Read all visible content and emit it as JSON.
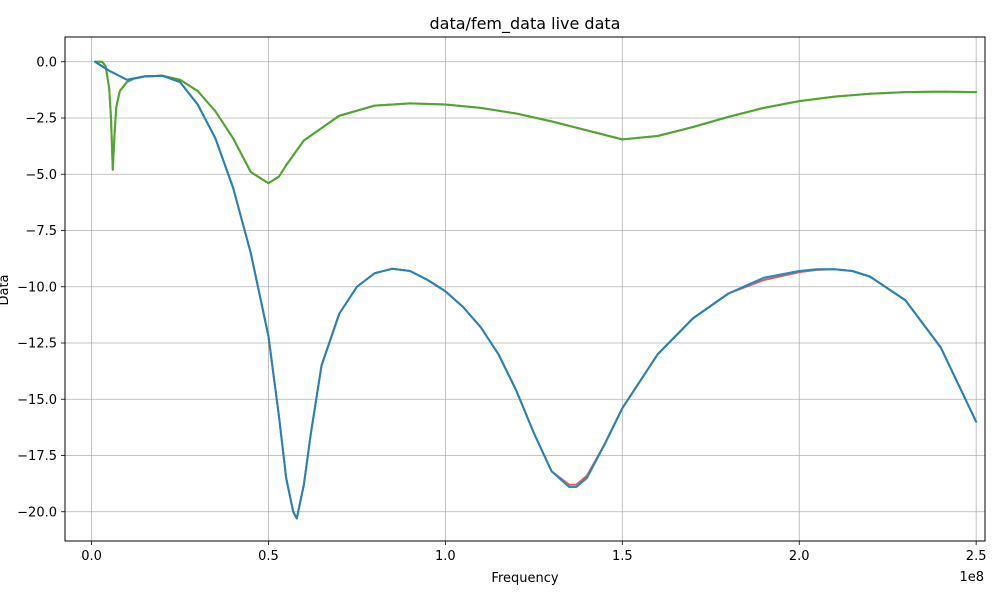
{
  "chart_data": {
    "type": "line",
    "title": "data/fem_data live data",
    "xlabel": "Frequency",
    "ylabel": "Data",
    "x_offset_label": "1e8",
    "xlim": [
      -0.075,
      2.525
    ],
    "ylim": [
      -21.3,
      1.1
    ],
    "x_ticks": [
      0.0,
      0.5,
      1.0,
      1.5,
      2.0,
      2.5
    ],
    "x_tick_labels": [
      "0.0",
      "0.5",
      "1.0",
      "1.5",
      "2.0",
      "2.5"
    ],
    "y_ticks": [
      0.0,
      -2.5,
      -5.0,
      -7.5,
      -10.0,
      -12.5,
      -15.0,
      -17.5,
      -20.0
    ],
    "y_tick_labels": [
      "0.0",
      "−2.5",
      "−5.0",
      "−7.5",
      "−10.0",
      "−12.5",
      "−15.0",
      "−17.5",
      "−20.0"
    ],
    "grid": true,
    "series": [
      {
        "color": "#7f7f7f",
        "x": [
          0.01,
          0.03,
          0.04,
          0.05,
          0.055,
          0.06,
          0.065,
          0.07,
          0.08,
          0.1,
          0.12,
          0.15,
          0.2,
          0.25,
          0.3,
          0.35,
          0.4,
          0.45,
          0.5,
          0.53,
          0.55,
          0.6,
          0.7,
          0.8,
          0.9,
          1.0,
          1.1,
          1.2,
          1.3,
          1.4,
          1.5,
          1.6,
          1.7,
          1.8,
          1.9,
          2.0,
          2.1,
          2.2,
          2.3,
          2.4,
          2.5
        ],
        "y": [
          0.0,
          0.0,
          -0.2,
          -1.2,
          -2.5,
          -4.8,
          -3.2,
          -2.0,
          -1.3,
          -0.9,
          -0.75,
          -0.65,
          -0.62,
          -0.8,
          -1.3,
          -2.2,
          -3.4,
          -4.9,
          -5.4,
          -5.1,
          -4.6,
          -3.5,
          -2.4,
          -1.95,
          -1.85,
          -1.9,
          -2.05,
          -2.3,
          -2.65,
          -3.05,
          -3.45,
          -3.3,
          -2.9,
          -2.45,
          -2.05,
          -1.75,
          -1.55,
          -1.42,
          -1.35,
          -1.33,
          -1.35
        ]
      },
      {
        "color": "#bcbd22",
        "x": [
          0.01,
          0.03,
          0.04,
          0.05,
          0.055,
          0.06,
          0.065,
          0.07,
          0.08,
          0.1,
          0.12,
          0.15,
          0.2,
          0.25,
          0.3,
          0.35,
          0.4,
          0.45,
          0.5,
          0.53,
          0.55,
          0.6,
          0.7,
          0.8,
          0.9,
          1.0,
          1.1,
          1.2,
          1.3,
          1.4,
          1.5,
          1.6,
          1.7,
          1.8,
          1.9,
          2.0,
          2.1,
          2.2,
          2.3,
          2.4,
          2.5
        ],
        "y": [
          0.0,
          0.0,
          -0.2,
          -1.2,
          -2.5,
          -4.8,
          -3.2,
          -2.0,
          -1.3,
          -0.9,
          -0.75,
          -0.65,
          -0.62,
          -0.8,
          -1.3,
          -2.2,
          -3.4,
          -4.9,
          -5.4,
          -5.1,
          -4.6,
          -3.5,
          -2.4,
          -1.95,
          -1.85,
          -1.9,
          -2.05,
          -2.3,
          -2.65,
          -3.05,
          -3.45,
          -3.3,
          -2.9,
          -2.45,
          -2.05,
          -1.75,
          -1.55,
          -1.42,
          -1.35,
          -1.33,
          -1.35
        ]
      },
      {
        "color": "#2ca02c",
        "x": [
          0.01,
          0.03,
          0.04,
          0.05,
          0.055,
          0.06,
          0.065,
          0.07,
          0.08,
          0.1,
          0.12,
          0.15,
          0.2,
          0.25,
          0.3,
          0.35,
          0.4,
          0.45,
          0.5,
          0.53,
          0.55,
          0.6,
          0.7,
          0.8,
          0.9,
          1.0,
          1.1,
          1.2,
          1.3,
          1.4,
          1.5,
          1.6,
          1.7,
          1.8,
          1.9,
          2.0,
          2.1,
          2.2,
          2.3,
          2.4,
          2.5
        ],
        "y": [
          0.0,
          0.0,
          -0.2,
          -1.2,
          -2.5,
          -4.8,
          -3.2,
          -2.0,
          -1.3,
          -0.9,
          -0.75,
          -0.65,
          -0.62,
          -0.8,
          -1.3,
          -2.2,
          -3.4,
          -4.9,
          -5.4,
          -5.1,
          -4.6,
          -3.5,
          -2.4,
          -1.95,
          -1.85,
          -1.9,
          -2.05,
          -2.3,
          -2.65,
          -3.05,
          -3.45,
          -3.3,
          -2.9,
          -2.45,
          -2.05,
          -1.75,
          -1.55,
          -1.42,
          -1.35,
          -1.33,
          -1.35
        ]
      },
      {
        "color": "#d62728",
        "x": [
          0.01,
          0.05,
          0.1,
          0.15,
          0.2,
          0.25,
          0.3,
          0.35,
          0.4,
          0.45,
          0.5,
          0.53,
          0.55,
          0.57,
          0.58,
          0.6,
          0.62,
          0.65,
          0.7,
          0.75,
          0.8,
          0.85,
          0.9,
          0.95,
          1.0,
          1.05,
          1.1,
          1.15,
          1.2,
          1.25,
          1.3,
          1.35,
          1.37,
          1.4,
          1.45,
          1.5,
          1.6,
          1.7,
          1.8,
          1.9,
          2.0,
          2.05,
          2.1,
          2.15,
          2.2,
          2.3,
          2.4,
          2.5
        ],
        "y": [
          0.0,
          -0.4,
          -0.8,
          -0.65,
          -0.62,
          -0.9,
          -1.9,
          -3.4,
          -5.6,
          -8.5,
          -12.2,
          -15.8,
          -18.5,
          -20.0,
          -20.3,
          -18.8,
          -16.5,
          -13.5,
          -11.2,
          -10.0,
          -9.4,
          -9.2,
          -9.3,
          -9.7,
          -10.2,
          -10.9,
          -11.8,
          -13.0,
          -14.6,
          -16.5,
          -18.2,
          -18.8,
          -18.8,
          -18.4,
          -17.0,
          -15.4,
          -13.0,
          -11.4,
          -10.3,
          -9.7,
          -9.35,
          -9.25,
          -9.22,
          -9.3,
          -9.55,
          -10.6,
          -12.7,
          -16.0
        ]
      },
      {
        "color": "#17becf",
        "x": [
          0.01,
          0.05,
          0.1,
          0.15,
          0.2,
          0.25,
          0.3,
          0.35,
          0.4,
          0.45,
          0.5,
          0.53,
          0.55,
          0.57,
          0.58,
          0.6,
          0.62,
          0.65,
          0.7,
          0.75,
          0.8,
          0.85,
          0.9,
          0.95,
          1.0,
          1.05,
          1.1,
          1.15,
          1.2,
          1.25,
          1.3,
          1.35,
          1.37,
          1.4,
          1.45,
          1.5,
          1.6,
          1.7,
          1.8,
          1.9,
          2.0,
          2.05,
          2.1,
          2.15,
          2.2,
          2.3,
          2.4,
          2.5
        ],
        "y": [
          0.0,
          -0.4,
          -0.8,
          -0.65,
          -0.62,
          -0.9,
          -1.9,
          -3.4,
          -5.6,
          -8.5,
          -12.2,
          -15.8,
          -18.5,
          -20.0,
          -20.3,
          -18.8,
          -16.5,
          -13.5,
          -11.2,
          -10.0,
          -9.4,
          -9.2,
          -9.3,
          -9.7,
          -10.2,
          -10.9,
          -11.8,
          -13.0,
          -14.6,
          -16.5,
          -18.2,
          -18.9,
          -18.9,
          -18.5,
          -17.0,
          -15.4,
          -13.0,
          -11.4,
          -10.3,
          -9.6,
          -9.3,
          -9.22,
          -9.22,
          -9.3,
          -9.55,
          -10.6,
          -12.7,
          -16.0
        ]
      },
      {
        "color": "#1f77b4",
        "x": [
          0.01,
          0.05,
          0.1,
          0.15,
          0.2,
          0.25,
          0.3,
          0.35,
          0.4,
          0.45,
          0.5,
          0.53,
          0.55,
          0.57,
          0.58,
          0.6,
          0.62,
          0.65,
          0.7,
          0.75,
          0.8,
          0.85,
          0.9,
          0.95,
          1.0,
          1.05,
          1.1,
          1.15,
          1.2,
          1.25,
          1.3,
          1.35,
          1.37,
          1.4,
          1.45,
          1.5,
          1.6,
          1.7,
          1.8,
          1.9,
          2.0,
          2.05,
          2.1,
          2.15,
          2.2,
          2.3,
          2.4,
          2.5
        ],
        "y": [
          0.0,
          -0.4,
          -0.8,
          -0.65,
          -0.62,
          -0.9,
          -1.9,
          -3.4,
          -5.6,
          -8.5,
          -12.2,
          -15.8,
          -18.5,
          -20.0,
          -20.3,
          -18.8,
          -16.5,
          -13.5,
          -11.2,
          -10.0,
          -9.4,
          -9.2,
          -9.3,
          -9.7,
          -10.2,
          -10.9,
          -11.8,
          -13.0,
          -14.6,
          -16.5,
          -18.2,
          -18.9,
          -18.9,
          -18.5,
          -17.0,
          -15.4,
          -13.0,
          -11.4,
          -10.3,
          -9.6,
          -9.3,
          -9.22,
          -9.22,
          -9.3,
          -9.55,
          -10.6,
          -12.7,
          -16.0
        ]
      }
    ]
  }
}
